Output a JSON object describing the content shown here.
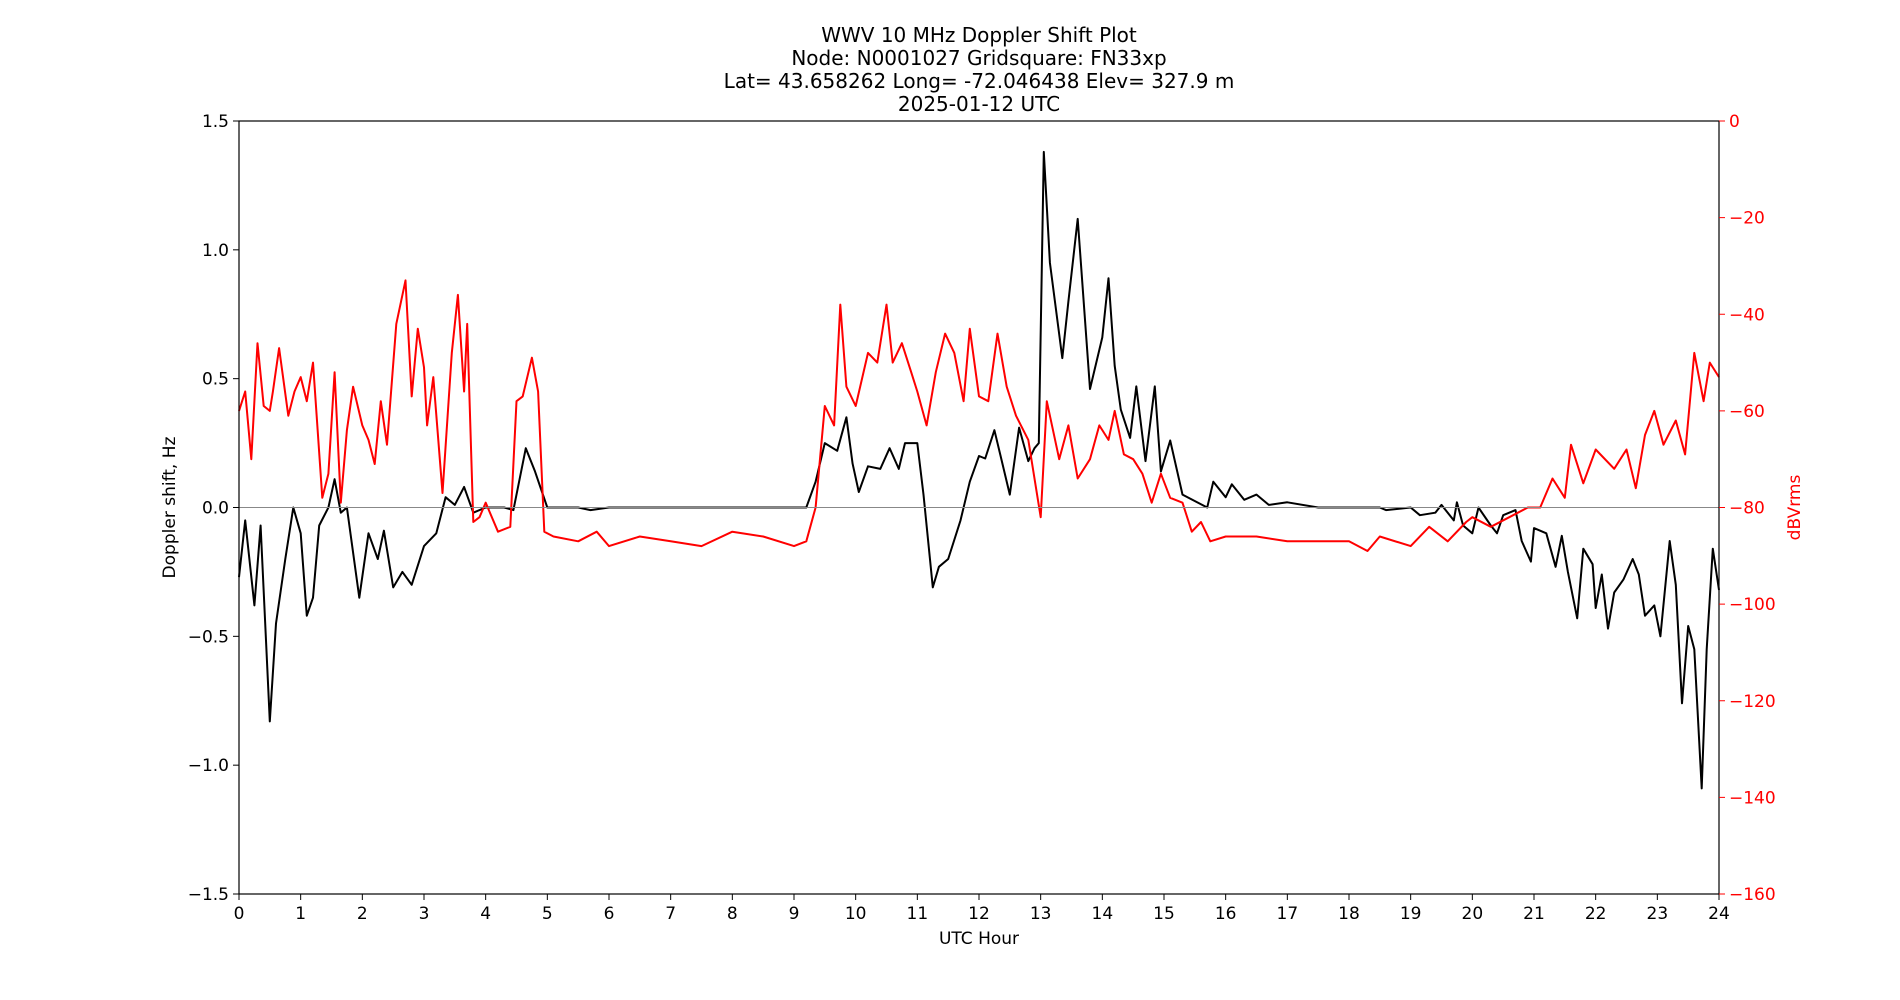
{
  "chart_data": {
    "type": "line",
    "title_lines": [
      "WWV 10 MHz Doppler Shift Plot",
      "Node:  N0001027     Gridsquare:  FN33xp",
      "Lat=   43.658262    Long= -72.046438    Elev= 327.9 m",
      "2025-01-12  UTC"
    ],
    "xlabel": "UTC Hour",
    "ylabel": "Doppler shift, Hz",
    "y2label": "dBVrms",
    "xlim": [
      0,
      24
    ],
    "ylim": [
      -1.5,
      1.5
    ],
    "y2lim": [
      -160,
      0
    ],
    "xticks": [
      "0",
      "1",
      "2",
      "3",
      "4",
      "5",
      "6",
      "7",
      "8",
      "9",
      "10",
      "11",
      "12",
      "13",
      "14",
      "15",
      "16",
      "17",
      "18",
      "19",
      "20",
      "21",
      "22",
      "23",
      "24"
    ],
    "yticks": [
      "1.5",
      "1.0",
      "0.5",
      "0.0",
      "−0.5",
      "−1.0",
      "−1.5"
    ],
    "y2ticks": [
      "0",
      "−20",
      "−40",
      "−60",
      "−80",
      "−100",
      "−120",
      "−140",
      "−160"
    ],
    "zero_line": 0,
    "grid": false,
    "colors": {
      "doppler": "#000000",
      "power": "#ff0000",
      "zero_line": "#888888"
    },
    "series": [
      {
        "axis": "left",
        "color": "#000000",
        "x": [
          0,
          0.1,
          0.25,
          0.35,
          0.5,
          0.6,
          0.75,
          0.88,
          1.0,
          1.1,
          1.2,
          1.3,
          1.45,
          1.55,
          1.65,
          1.75,
          1.95,
          2.1,
          2.25,
          2.35,
          2.5,
          2.65,
          2.8,
          3.0,
          3.2,
          3.35,
          3.5,
          3.65,
          3.8,
          4.0,
          4.3,
          4.45,
          4.6,
          4.65,
          4.8,
          5.0,
          5.5,
          5.7,
          6,
          7,
          8,
          9,
          9.2,
          9.35,
          9.5,
          9.7,
          9.85,
          9.95,
          10.05,
          10.2,
          10.4,
          10.55,
          10.7,
          10.8,
          11.0,
          11.1,
          11.25,
          11.35,
          11.5,
          11.7,
          11.85,
          12.0,
          12.1,
          12.25,
          12.35,
          12.5,
          12.65,
          12.8,
          12.9,
          12.97,
          13.05,
          13.15,
          13.35,
          13.45,
          13.6,
          13.8,
          14.0,
          14.1,
          14.2,
          14.3,
          14.45,
          14.55,
          14.7,
          14.85,
          14.95,
          15.1,
          15.3,
          15.7,
          15.8,
          16.0,
          16.1,
          16.3,
          16.5,
          16.7,
          17.0,
          17.5,
          18.5,
          18.6,
          19.0,
          19.15,
          19.4,
          19.5,
          19.7,
          19.75,
          19.85,
          20.0,
          20.1,
          20.3,
          20.4,
          20.5,
          20.7,
          20.8,
          20.95,
          21.0,
          21.2,
          21.35,
          21.45,
          21.55,
          21.7,
          21.8,
          21.95,
          22.0,
          22.1,
          22.2,
          22.3,
          22.45,
          22.6,
          22.7,
          22.8,
          22.95,
          23.05,
          23.2,
          23.3,
          23.4,
          23.5,
          23.6,
          23.72,
          23.8,
          23.9,
          24
        ],
        "y": [
          -0.27,
          -0.05,
          -0.38,
          -0.07,
          -0.83,
          -0.45,
          -0.2,
          0.0,
          -0.1,
          -0.42,
          -0.35,
          -0.07,
          0.0,
          0.11,
          -0.02,
          0.0,
          -0.35,
          -0.1,
          -0.2,
          -0.09,
          -0.31,
          -0.25,
          -0.3,
          -0.15,
          -0.1,
          0.04,
          0.01,
          0.08,
          -0.02,
          0.0,
          0.0,
          -0.01,
          0.17,
          0.23,
          0.14,
          0.0,
          0.0,
          -0.01,
          0,
          0,
          0,
          0,
          0,
          0.1,
          0.25,
          0.22,
          0.35,
          0.17,
          0.06,
          0.16,
          0.15,
          0.23,
          0.15,
          0.25,
          0.25,
          0.05,
          -0.31,
          -0.23,
          -0.2,
          -0.05,
          0.1,
          0.2,
          0.19,
          0.3,
          0.2,
          0.05,
          0.31,
          0.18,
          0.23,
          0.25,
          1.38,
          0.95,
          0.58,
          0.8,
          1.12,
          0.46,
          0.66,
          0.89,
          0.55,
          0.38,
          0.27,
          0.47,
          0.18,
          0.47,
          0.14,
          0.26,
          0.05,
          0.0,
          0.1,
          0.04,
          0.09,
          0.03,
          0.05,
          0.01,
          0.02,
          0.0,
          0.0,
          -0.01,
          0.0,
          -0.03,
          -0.02,
          0.01,
          -0.05,
          0.02,
          -0.07,
          -0.1,
          0.0,
          -0.07,
          -0.1,
          -0.03,
          -0.01,
          -0.13,
          -0.21,
          -0.08,
          -0.1,
          -0.23,
          -0.11,
          -0.25,
          -0.43,
          -0.16,
          -0.22,
          -0.39,
          -0.26,
          -0.47,
          -0.33,
          -0.28,
          -0.2,
          -0.26,
          -0.42,
          -0.38,
          -0.5,
          -0.13,
          -0.3,
          -0.76,
          -0.46,
          -0.55,
          -1.09,
          -0.55,
          -0.16,
          -0.32
        ]
      },
      {
        "axis": "right",
        "color": "#ff0000",
        "x": [
          0,
          0.1,
          0.2,
          0.3,
          0.4,
          0.5,
          0.55,
          0.65,
          0.8,
          0.9,
          1.0,
          1.1,
          1.2,
          1.35,
          1.45,
          1.55,
          1.65,
          1.75,
          1.85,
          2.0,
          2.1,
          2.2,
          2.3,
          2.4,
          2.55,
          2.7,
          2.8,
          2.9,
          3.0,
          3.05,
          3.15,
          3.3,
          3.45,
          3.55,
          3.65,
          3.7,
          3.8,
          3.9,
          4.0,
          4.2,
          4.4,
          4.5,
          4.6,
          4.75,
          4.85,
          4.95,
          5.1,
          5.5,
          5.8,
          6.0,
          6.5,
          7,
          7.5,
          8,
          8.5,
          9.0,
          9.2,
          9.35,
          9.5,
          9.65,
          9.75,
          9.85,
          10.0,
          10.2,
          10.35,
          10.5,
          10.6,
          10.75,
          10.9,
          11.0,
          11.15,
          11.3,
          11.45,
          11.6,
          11.75,
          11.85,
          12.0,
          12.15,
          12.3,
          12.45,
          12.6,
          12.8,
          13.0,
          13.1,
          13.3,
          13.45,
          13.6,
          13.8,
          13.95,
          14.1,
          14.2,
          14.35,
          14.5,
          14.65,
          14.8,
          14.95,
          15.1,
          15.3,
          15.45,
          15.6,
          15.75,
          16.0,
          16.5,
          17.0,
          17.5,
          18.0,
          18.3,
          18.5,
          19.0,
          19.3,
          19.6,
          19.9,
          20.0,
          20.3,
          20.6,
          20.9,
          21.1,
          21.3,
          21.5,
          21.6,
          21.8,
          22.0,
          22.3,
          22.5,
          22.65,
          22.8,
          22.95,
          23.1,
          23.3,
          23.45,
          23.6,
          23.75,
          23.85,
          24
        ],
        "y": [
          -60,
          -56,
          -70,
          -46,
          -59,
          -60,
          -56,
          -47,
          -61,
          -56,
          -53,
          -58,
          -50,
          -78,
          -73,
          -52,
          -79,
          -64,
          -55,
          -63,
          -66,
          -71,
          -58,
          -67,
          -42,
          -33,
          -57,
          -43,
          -51,
          -63,
          -53,
          -77,
          -48,
          -36,
          -56,
          -42,
          -83,
          -82,
          -79,
          -85,
          -84,
          -58,
          -57,
          -49,
          -56,
          -85,
          -86,
          -87,
          -85,
          -88,
          -86,
          -87,
          -88,
          -85,
          -86,
          -88,
          -87,
          -80,
          -59,
          -63,
          -38,
          -55,
          -59,
          -48,
          -50,
          -38,
          -50,
          -46,
          -52,
          -56,
          -63,
          -52,
          -44,
          -48,
          -58,
          -43,
          -57,
          -58,
          -44,
          -55,
          -61,
          -66,
          -82,
          -58,
          -70,
          -63,
          -74,
          -70,
          -63,
          -66,
          -60,
          -69,
          -70,
          -73,
          -79,
          -73,
          -78,
          -79,
          -85,
          -83,
          -87,
          -86,
          -86,
          -87,
          -87,
          -87,
          -89,
          -86,
          -88,
          -84,
          -87,
          -83,
          -82,
          -84,
          -82,
          -80,
          -80,
          -74,
          -78,
          -67,
          -75,
          -68,
          -72,
          -68,
          -76,
          -65,
          -60,
          -67,
          -62,
          -69,
          -48,
          -58,
          -50,
          -53
        ]
      }
    ]
  }
}
